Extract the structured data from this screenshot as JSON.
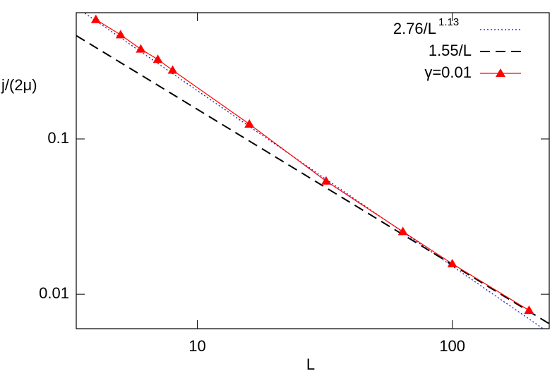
{
  "chart_data": {
    "type": "line",
    "log_x": true,
    "log_y": true,
    "x_label": "L",
    "y_label": "j/(2μ)",
    "xlim": [
      3.35,
      240
    ],
    "ylim": [
      0.006,
      0.65
    ],
    "xticks": [
      10,
      100
    ],
    "yticks": [
      0.01,
      0.1
    ],
    "legend": "top-right",
    "series": [
      {
        "name": "2.76/L",
        "name_sup": "1.13",
        "color": "#0000ff",
        "style": "dotted",
        "x": [
          3.35,
          240
        ],
        "values": [
          0.704,
          0.00564
        ]
      },
      {
        "name": "1.55/L",
        "color": "#000000",
        "style": "dashed",
        "x": [
          3.35,
          240
        ],
        "values": [
          0.463,
          0.00646
        ]
      },
      {
        "name": "γ=0.01",
        "color": "#ff0000",
        "style": "line-triangle",
        "x": [
          4,
          5,
          6,
          7,
          8,
          16,
          32,
          64,
          100,
          200
        ],
        "values": [
          0.587,
          0.468,
          0.379,
          0.325,
          0.277,
          0.1245,
          0.0535,
          0.0253,
          0.0157,
          0.00787
        ]
      }
    ]
  }
}
